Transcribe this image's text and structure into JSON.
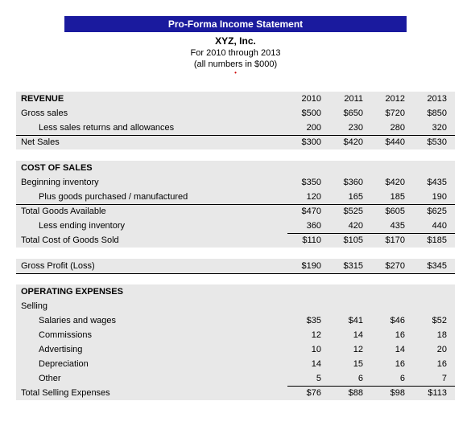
{
  "header": {
    "banner": "Pro-Forma Income Statement",
    "company": "XYZ, Inc.",
    "period": "For 2010 through 2013",
    "note": "(all numbers in $000)"
  },
  "years": [
    "2010",
    "2011",
    "2012",
    "2013"
  ],
  "revenue": {
    "title": "REVENUE",
    "gross_sales": {
      "label": "Gross sales",
      "v": [
        "$500",
        "$650",
        "$720",
        "$850"
      ]
    },
    "less_returns": {
      "label": "Less sales returns and allowances",
      "v": [
        "200",
        "230",
        "280",
        "320"
      ]
    },
    "net_sales": {
      "label": "Net Sales",
      "v": [
        "$300",
        "$420",
        "$440",
        "$530"
      ]
    }
  },
  "cogs": {
    "title": "COST OF SALES",
    "beg_inv": {
      "label": "Beginning inventory",
      "v": [
        "$350",
        "$360",
        "$420",
        "$435"
      ]
    },
    "purchased": {
      "label": "Plus goods purchased / manufactured",
      "v": [
        "120",
        "165",
        "185",
        "190"
      ]
    },
    "total_avail": {
      "label": "Total Goods Available",
      "v": [
        "$470",
        "$525",
        "$605",
        "$625"
      ]
    },
    "less_end": {
      "label": "Less ending inventory",
      "v": [
        "360",
        "420",
        "435",
        "440"
      ]
    },
    "total_cogs": {
      "label": "Total Cost of Goods Sold",
      "v": [
        "$110",
        "$105",
        "$170",
        "$185"
      ]
    }
  },
  "gross_profit": {
    "label": "Gross Profit (Loss)",
    "v": [
      "$190",
      "$315",
      "$270",
      "$345"
    ]
  },
  "opex": {
    "title": "OPERATING EXPENSES",
    "selling_label": "Selling",
    "salaries": {
      "label": "Salaries and wages",
      "v": [
        "$35",
        "$41",
        "$46",
        "$52"
      ]
    },
    "commissions": {
      "label": "Commissions",
      "v": [
        "12",
        "14",
        "16",
        "18"
      ]
    },
    "advertising": {
      "label": "Advertising",
      "v": [
        "10",
        "12",
        "14",
        "20"
      ]
    },
    "depreciation": {
      "label": "Depreciation",
      "v": [
        "14",
        "15",
        "16",
        "16"
      ]
    },
    "other": {
      "label": "Other",
      "v": [
        "5",
        "6",
        "6",
        "7"
      ]
    },
    "total_selling": {
      "label": "Total Selling Expenses",
      "v": [
        "$76",
        "$88",
        "$98",
        "$113"
      ]
    }
  },
  "style": {
    "banner_bg": "#1a1a9e",
    "banner_fg": "#ffffff",
    "shade_bg": "#e8e8e8",
    "text_color": "#000000",
    "font_size_body": 11,
    "font_size_header": 12
  }
}
